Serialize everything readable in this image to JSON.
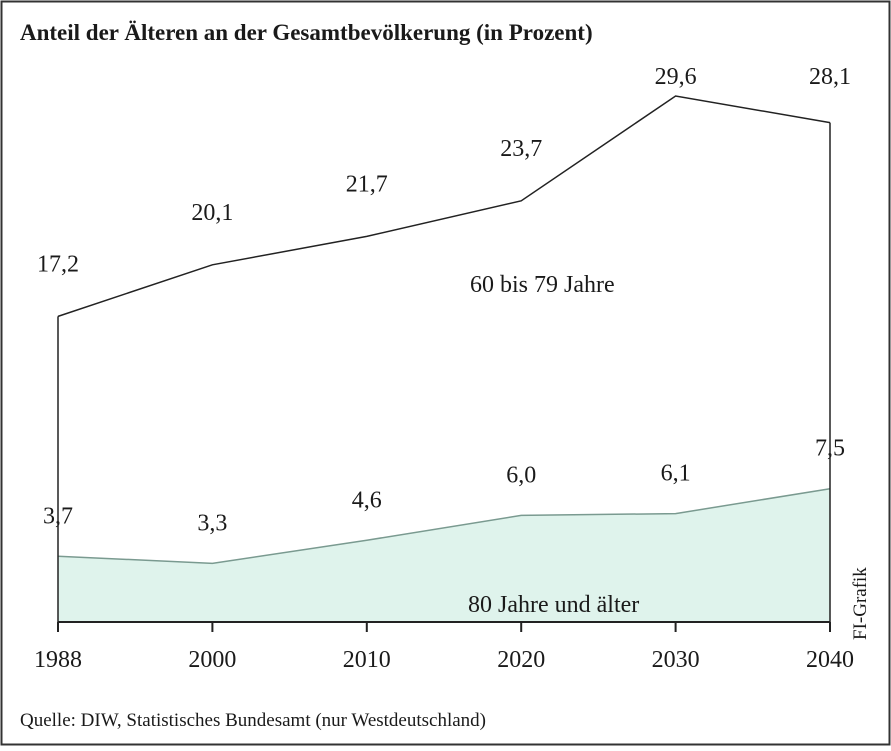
{
  "chart_data": {
    "type": "area",
    "title": "Anteil der Älteren an der Gesamtbevölkerung (in Prozent)",
    "categories": [
      "1988",
      "2000",
      "2010",
      "2020",
      "2030",
      "2040"
    ],
    "series": [
      {
        "name": "60 bis 79 Jahre",
        "color": "#222222",
        "fill": "none",
        "values": [
          17.2,
          20.1,
          21.7,
          23.7,
          29.6,
          28.1
        ],
        "value_labels": [
          "17,2",
          "20,1",
          "21,7",
          "23,7",
          "29,6",
          "28,1"
        ]
      },
      {
        "name": "80 Jahre und älter",
        "color": "#7a9a90",
        "fill": "#dff3ec",
        "values": [
          3.7,
          3.3,
          4.6,
          6.0,
          6.1,
          7.5
        ],
        "value_labels": [
          "3,7",
          "3,3",
          "4,6",
          "6,0",
          "6,1",
          "7,5"
        ]
      }
    ],
    "credit": "FI-Grafik",
    "source": "Quelle: DIW, Statistisches Bundesamt (nur Westdeutschland)"
  }
}
